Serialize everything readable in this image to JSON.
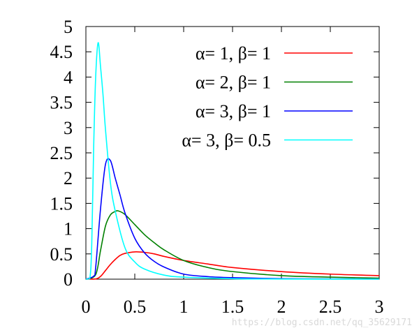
{
  "chart_data": {
    "type": "line",
    "title": "",
    "xlabel": "",
    "ylabel": "",
    "xlim": [
      0,
      3
    ],
    "ylim": [
      0,
      5
    ],
    "x_ticks": [
      0,
      0.5,
      1,
      1.5,
      2,
      2.5,
      3
    ],
    "x_tick_labels": [
      "0",
      "0.5",
      "1",
      "1.5",
      "2",
      "2.5",
      "3"
    ],
    "y_ticks": [
      0,
      0.5,
      1,
      1.5,
      2,
      2.5,
      3,
      3.5,
      4,
      4.5,
      5
    ],
    "y_tick_labels": [
      "0",
      "0.5",
      "1",
      "1.5",
      "2",
      "2.5",
      "3",
      "3.5",
      "4",
      "4.5",
      "5"
    ],
    "grid": false,
    "legend_position": "top-right",
    "series": [
      {
        "name": "α= 1, β= 1",
        "color": "#ff0000",
        "x": [
          0,
          0.1,
          0.15,
          0.2,
          0.25,
          0.3,
          0.35,
          0.4,
          0.5,
          0.6,
          0.7,
          0.8,
          1,
          1.25,
          1.5,
          2,
          2.5,
          3
        ],
        "y": [
          0,
          0.0045,
          0.055,
          0.17,
          0.29,
          0.39,
          0.47,
          0.51,
          0.54,
          0.53,
          0.5,
          0.45,
          0.37,
          0.3,
          0.23,
          0.15,
          0.1,
          0.07
        ]
      },
      {
        "name": "α= 2, β= 1",
        "color": "#008000",
        "x": [
          0,
          0.1,
          0.15,
          0.2,
          0.25,
          0.3,
          0.333,
          0.4,
          0.5,
          0.6,
          0.7,
          0.8,
          1,
          1.25,
          1.5,
          2,
          2.5,
          3
        ],
        "y": [
          0,
          0.09,
          0.57,
          1.05,
          1.27,
          1.34,
          1.35,
          1.28,
          1.08,
          0.88,
          0.72,
          0.58,
          0.37,
          0.23,
          0.15,
          0.07,
          0.04,
          0.02
        ]
      },
      {
        "name": "α= 3, β= 1",
        "color": "#0000ff",
        "x": [
          0,
          0.08,
          0.1,
          0.15,
          0.2,
          0.25,
          0.3,
          0.35,
          0.4,
          0.5,
          0.6,
          0.7,
          0.8,
          1,
          1.25,
          1.5,
          2,
          2.5,
          3
        ],
        "y": [
          0,
          0.06,
          0.23,
          1.4,
          2.27,
          2.35,
          2.0,
          1.66,
          1.31,
          0.81,
          0.52,
          0.35,
          0.24,
          0.1,
          0.05,
          0.03,
          0.01,
          0.005,
          0.003
        ]
      },
      {
        "name": "α= 3, β= 0.5",
        "color": "#00ffff",
        "x": [
          0,
          0.04,
          0.06,
          0.08,
          0.1,
          0.125,
          0.15,
          0.175,
          0.2,
          0.25,
          0.3,
          0.4,
          0.5,
          0.6,
          0.8,
          1,
          1.5,
          2,
          3
        ],
        "y": [
          0,
          0.01,
          0.7,
          2.65,
          4.0,
          4.68,
          4.2,
          3.65,
          2.97,
          1.92,
          1.35,
          0.62,
          0.34,
          0.2,
          0.08,
          0.04,
          0.01,
          0.003,
          0
        ]
      }
    ]
  },
  "watermark": "https://blog.csdn.net/qq_35629171"
}
